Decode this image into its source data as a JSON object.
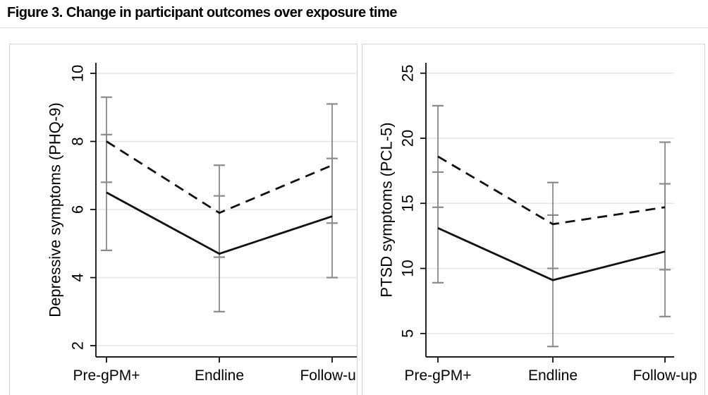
{
  "title": "Figure 3. Change in participant outcomes over exposure time",
  "colors": {
    "axis": "#000000",
    "grid": "#e6e6e6",
    "error_bar": "#8a8a8a",
    "series_line": "#111111",
    "panel_border": "#d4d4d4",
    "background": "#ffffff"
  },
  "chart_data": [
    {
      "type": "line",
      "panel": "left",
      "title": "",
      "xlabel": "",
      "ylabel": "Depressive symptoms (PHQ-9)",
      "categories": [
        "Pre-gPM+",
        "Endline",
        "Follow-up"
      ],
      "yticks": [
        2,
        4,
        6,
        8,
        10
      ],
      "ylim": [
        1.67,
        10.31
      ],
      "grid": true,
      "legend": "none",
      "series": [
        {
          "name": "dashed",
          "line_style": "dashed",
          "values": [
            8.0,
            5.9,
            7.3
          ],
          "ci_low": [
            6.8,
            4.6,
            5.6
          ],
          "ci_high": [
            9.3,
            7.3,
            9.1
          ]
        },
        {
          "name": "solid",
          "line_style": "solid",
          "values": [
            6.5,
            4.7,
            5.8
          ],
          "ci_low": [
            4.8,
            3.0,
            4.0
          ],
          "ci_high": [
            8.2,
            6.4,
            7.5
          ]
        }
      ]
    },
    {
      "type": "line",
      "panel": "right",
      "title": "",
      "xlabel": "",
      "ylabel": "PTSD symptoms (PCL-5)",
      "categories": [
        "Pre-gPM+",
        "Endline",
        "Follow-up"
      ],
      "yticks": [
        5,
        10,
        15,
        20,
        25
      ],
      "ylim": [
        3.2,
        25.8
      ],
      "grid": true,
      "legend": "none",
      "series": [
        {
          "name": "dashed",
          "line_style": "dashed",
          "values": [
            18.6,
            13.4,
            14.7
          ],
          "ci_low": [
            14.7,
            10.0,
            9.9
          ],
          "ci_high": [
            22.5,
            16.6,
            19.7
          ]
        },
        {
          "name": "solid",
          "line_style": "solid",
          "values": [
            13.1,
            9.1,
            11.3
          ],
          "ci_low": [
            8.9,
            4.0,
            6.3
          ],
          "ci_high": [
            17.4,
            14.1,
            16.5
          ]
        }
      ]
    }
  ]
}
